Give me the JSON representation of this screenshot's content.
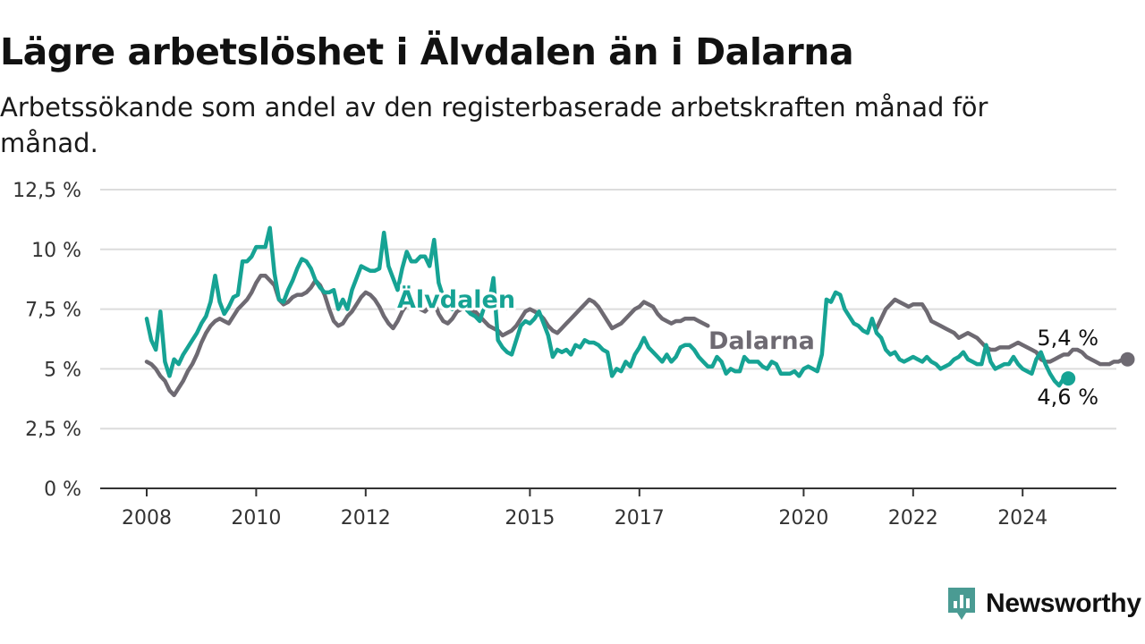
{
  "title": "Lägre arbetslöshet i Älvdalen än i Dalarna",
  "subtitle": "Arbetssökande som andel av den registerbaserade arbetskraften månad för månad.",
  "brand": {
    "name": "Newsworthy",
    "icon": "newsworthy-logo-icon",
    "color": "#4a9b93"
  },
  "colors": {
    "alvdalen": "#16a394",
    "dalarna": "#6e6a72",
    "grid": "#dcdcdc",
    "axis": "#333333"
  },
  "chart_data": {
    "type": "line",
    "title": "Lägre arbetslöshet i Älvdalen än i Dalarna",
    "subtitle": "Arbetssökande som andel av den registerbaserade arbetskraften månad för månad.",
    "xlabel": "",
    "ylabel": "",
    "x_start": "2008-01",
    "xticks": [
      "2008",
      "2010",
      "2012",
      "2015",
      "2017",
      "2020",
      "2022",
      "2024"
    ],
    "ylim": [
      0,
      12.5
    ],
    "yticks": [
      {
        "value": 0,
        "label": "0 %"
      },
      {
        "value": 2.5,
        "label": "2,5 %"
      },
      {
        "value": 5,
        "label": "5 %"
      },
      {
        "value": 7.5,
        "label": "7,5 %"
      },
      {
        "value": 10,
        "label": "10 %"
      },
      {
        "value": 12.5,
        "label": "12,5 %"
      }
    ],
    "grid": true,
    "legend": "inline labels",
    "series": [
      {
        "name": "Älvdalen",
        "color": "#16a394",
        "end_label": "4,6 %",
        "values": [
          7.1,
          6.2,
          5.8,
          7.4,
          5.3,
          4.7,
          5.4,
          5.2,
          5.6,
          5.9,
          6.2,
          6.5,
          6.9,
          7.2,
          7.8,
          8.9,
          7.8,
          7.3,
          7.6,
          8.0,
          8.1,
          9.5,
          9.5,
          9.7,
          10.1,
          10.1,
          10.1,
          10.9,
          9.0,
          7.9,
          7.8,
          8.3,
          8.7,
          9.2,
          9.6,
          9.5,
          9.2,
          8.7,
          8.4,
          8.2,
          8.2,
          8.3,
          7.5,
          7.9,
          7.5,
          8.3,
          8.8,
          9.3,
          9.2,
          9.1,
          9.1,
          9.2,
          10.7,
          9.3,
          8.8,
          8.3,
          9.2,
          9.9,
          9.5,
          9.5,
          9.7,
          9.7,
          9.3,
          10.4,
          8.6,
          8.0,
          7.6,
          7.5,
          7.8,
          7.7,
          7.5,
          7.3,
          7.2,
          7.0,
          7.6,
          7.7,
          8.8,
          6.2,
          5.9,
          5.7,
          5.6,
          6.2,
          6.8,
          7.0,
          6.9,
          7.1,
          7.4,
          6.9,
          6.4,
          5.5,
          5.8,
          5.7,
          5.8,
          5.6,
          6.0,
          5.9,
          6.2,
          6.1,
          6.1,
          6.0,
          5.8,
          5.7,
          4.7,
          5.0,
          4.9,
          5.3,
          5.1,
          5.6,
          5.9,
          6.3,
          5.9,
          5.7,
          5.5,
          5.3,
          5.6,
          5.3,
          5.5,
          5.9,
          6.0,
          6.0,
          5.8,
          5.5,
          5.3,
          5.1,
          5.1,
          5.5,
          5.3,
          4.8,
          5.0,
          4.9,
          4.9,
          5.5,
          5.3,
          5.3,
          5.3,
          5.1,
          5.0,
          5.3,
          5.2,
          4.8,
          4.8,
          4.8,
          4.9,
          4.7,
          5.0,
          5.1,
          5.0,
          4.9,
          5.6,
          7.9,
          7.8,
          8.2,
          8.1,
          7.5,
          7.2,
          6.9,
          6.8,
          6.6,
          6.5,
          7.1,
          6.5,
          6.3,
          5.8,
          5.6,
          5.7,
          5.4,
          5.3,
          5.4,
          5.5,
          5.4,
          5.3,
          5.5,
          5.3,
          5.2,
          5.0,
          5.1,
          5.2,
          5.4,
          5.5,
          5.7,
          5.4,
          5.3,
          5.2,
          5.2,
          6.0,
          5.3,
          5.0,
          5.1,
          5.2,
          5.2,
          5.5,
          5.2,
          5.0,
          4.9,
          4.8,
          5.4,
          5.7,
          5.2,
          4.8,
          4.5,
          4.3,
          4.6,
          4.6
        ]
      },
      {
        "name": "Dalarna",
        "color": "#6e6a72",
        "end_label": "5,4 %",
        "values": [
          5.3,
          5.2,
          5.0,
          4.7,
          4.5,
          4.1,
          3.9,
          4.2,
          4.5,
          4.9,
          5.2,
          5.6,
          6.1,
          6.5,
          6.8,
          7.0,
          7.1,
          7.0,
          6.9,
          7.2,
          7.5,
          7.7,
          7.9,
          8.2,
          8.6,
          8.9,
          8.9,
          8.7,
          8.5,
          7.9,
          7.7,
          7.8,
          8.0,
          8.1,
          8.1,
          8.2,
          8.4,
          8.7,
          8.5,
          8.1,
          7.5,
          7.0,
          6.8,
          6.9,
          7.2,
          7.4,
          7.7,
          8.0,
          8.2,
          8.1,
          7.9,
          7.6,
          7.2,
          6.9,
          6.7,
          7.0,
          7.4,
          7.7,
          8.0,
          7.8,
          7.5,
          7.4,
          7.6,
          7.8,
          7.3,
          7.0,
          6.9,
          7.1,
          7.4,
          7.5,
          7.6,
          7.4,
          7.4,
          7.2,
          7.0,
          6.8,
          6.7,
          6.6,
          6.4,
          6.5,
          6.6,
          6.8,
          7.1,
          7.4,
          7.5,
          7.4,
          7.3,
          7.1,
          6.8,
          6.6,
          6.5,
          6.7,
          6.9,
          7.1,
          7.3,
          7.5,
          7.7,
          7.9,
          7.8,
          7.6,
          7.3,
          7.0,
          6.7,
          6.8,
          6.9,
          7.1,
          7.3,
          7.5,
          7.6,
          7.8,
          7.7,
          7.6,
          7.3,
          7.1,
          7.0,
          6.9,
          7.0,
          7.0,
          7.1,
          7.1,
          7.1,
          7.0,
          6.9,
          6.8,
          null,
          null,
          null,
          null,
          null,
          null,
          null,
          null,
          null,
          null,
          null,
          null,
          null,
          null,
          null,
          null,
          null,
          null,
          null,
          null,
          null,
          null,
          null,
          null,
          null,
          null,
          null,
          null,
          null,
          null,
          null,
          null,
          null,
          null,
          null,
          null,
          6.7,
          7.1,
          7.5,
          7.7,
          7.9,
          7.8,
          7.7,
          7.6,
          7.7,
          7.7,
          7.7,
          7.4,
          7.0,
          6.9,
          6.8,
          6.7,
          6.6,
          6.5,
          6.3,
          6.4,
          6.5,
          6.4,
          6.3,
          6.1,
          5.9,
          5.8,
          5.8,
          5.9,
          5.9,
          5.9,
          6.0,
          6.1,
          6.0,
          5.9,
          5.8,
          5.7,
          5.4,
          5.3,
          5.3,
          5.4,
          5.5,
          5.6,
          5.6,
          5.8,
          5.8,
          5.7,
          5.5,
          5.4,
          5.3,
          5.2,
          5.2,
          5.2,
          5.3,
          5.3,
          5.4,
          5.4
        ]
      }
    ]
  }
}
